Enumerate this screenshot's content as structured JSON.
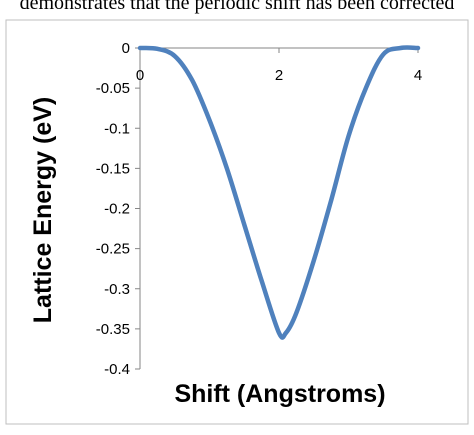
{
  "page": {
    "caption_text": "demonstrates that the periodic shift has been corrected"
  },
  "chart_data": {
    "type": "line",
    "title": "",
    "xlabel": "Shift (Angstroms)",
    "ylabel": "Lattice Energy (eV)",
    "xlim": [
      0,
      4
    ],
    "ylim": [
      -0.4,
      0
    ],
    "xticks": [
      0,
      2,
      4
    ],
    "yticks": [
      0,
      -0.05,
      -0.1,
      -0.15,
      -0.2,
      -0.25,
      -0.3,
      -0.35,
      -0.4
    ],
    "grid": false,
    "legend": "none",
    "series": [
      {
        "color": "#4F81BD",
        "x": [
          0,
          0.25,
          0.5,
          0.75,
          1.0,
          1.25,
          1.5,
          1.75,
          2.0,
          2.1,
          2.25,
          2.5,
          2.75,
          3.0,
          3.25,
          3.5,
          3.75,
          4.0
        ],
        "y": [
          0,
          -0.001,
          -0.01,
          -0.04,
          -0.09,
          -0.15,
          -0.22,
          -0.29,
          -0.355,
          -0.355,
          -0.33,
          -0.265,
          -0.19,
          -0.11,
          -0.05,
          -0.008,
          0,
          0
        ]
      }
    ]
  }
}
